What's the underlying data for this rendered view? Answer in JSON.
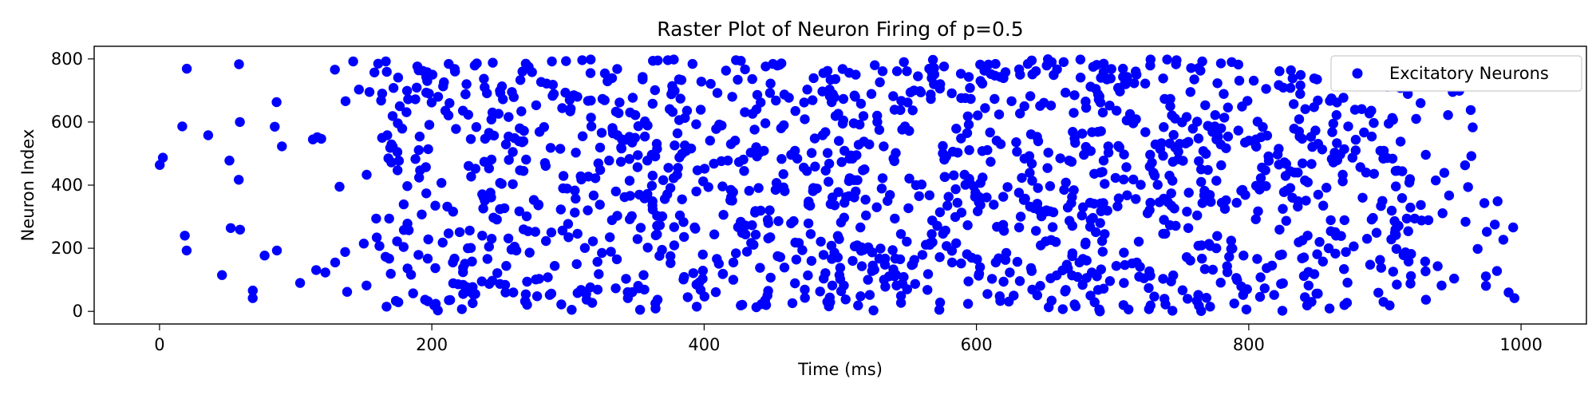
{
  "chart_data": {
    "type": "scatter",
    "title": "Raster Plot of Neuron Firing of p=0.5",
    "xlabel": "Time (ms)",
    "ylabel": "Neuron Index",
    "xlim": [
      -48,
      1048
    ],
    "ylim": [
      -40,
      840
    ],
    "x_ticks": [
      0,
      200,
      400,
      600,
      800,
      1000
    ],
    "y_ticks": [
      0,
      200,
      400,
      600,
      800
    ],
    "grid": false,
    "legend_position": "top-right",
    "series": [
      {
        "name": "Excitatory Neurons",
        "color": "#0000ff",
        "marker": "circle",
        "point_count": 1500,
        "note_points_generated": "sampled approximation of the dense raster"
      }
    ]
  }
}
